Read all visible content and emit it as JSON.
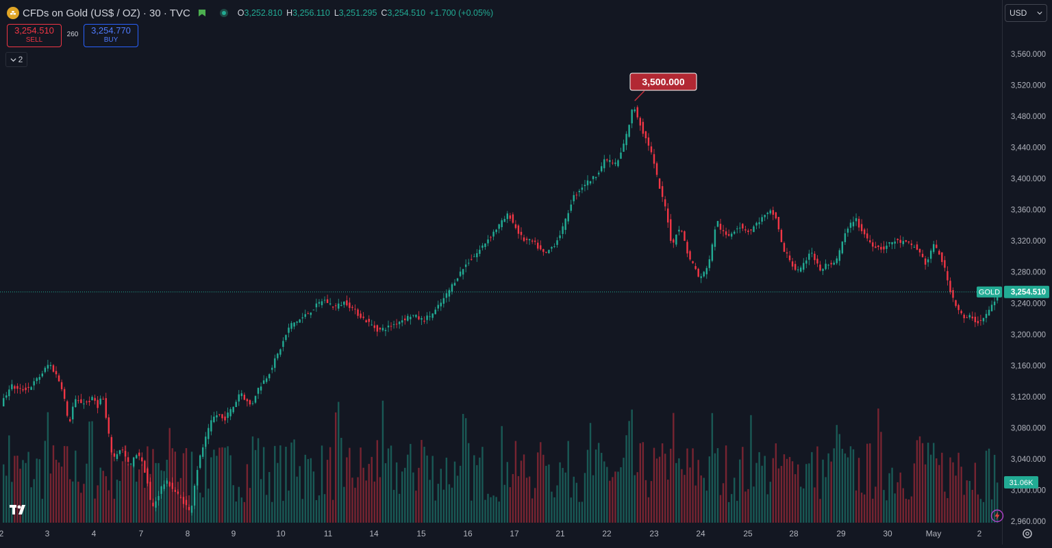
{
  "header": {
    "symbol_title": "CFDs on Gold (US$ / OZ) · 30 · TVC",
    "ohlc": [
      {
        "key": "O",
        "value": "3,252.810"
      },
      {
        "key": "H",
        "value": "3,256.110"
      },
      {
        "key": "L",
        "value": "3,251.295"
      },
      {
        "key": "C",
        "value": "3,254.510"
      },
      {
        "key": "",
        "value": "+1.700 (+0.05%)"
      }
    ]
  },
  "trade": {
    "sell_price": "3,254.510",
    "sell_label": "SELL",
    "spread": "260",
    "buy_price": "3,254.770",
    "buy_label": "BUY"
  },
  "indicators_collapse_count": "2",
  "currency_select": "USD",
  "colors": {
    "up": "#22ab94",
    "down": "#f23645",
    "background": "#131722",
    "label_bg": "#b22833"
  },
  "icons": [
    "gold-symbol-icon",
    "flag-icon",
    "market-open-dot-icon",
    "chevron-down-icon",
    "tradingview-logo",
    "settings-gear-icon",
    "lightning-icon"
  ],
  "chart_data": {
    "type": "candlestick",
    "timeframe": "30",
    "price_axis": {
      "ticks": [
        "3,560.000",
        "3,520.000",
        "3,480.000",
        "3,440.000",
        "3,400.000",
        "3,360.000",
        "3,320.000",
        "3,280.000",
        "3,240.000",
        "3,200.000",
        "3,160.000",
        "3,120.000",
        "3,080.000",
        "3,040.000",
        "3,000.000",
        "2,960.000"
      ],
      "range": [
        2960,
        3580
      ]
    },
    "time_axis": [
      "2",
      "3",
      "4",
      "7",
      "8",
      "9",
      "10",
      "11",
      "14",
      "15",
      "16",
      "17",
      "21",
      "22",
      "23",
      "24",
      "25",
      "28",
      "29",
      "30",
      "May",
      "2"
    ],
    "price_path": [
      [
        0,
        3112
      ],
      [
        3,
        3135
      ],
      [
        6,
        3128
      ],
      [
        10,
        3132
      ],
      [
        14,
        3148
      ],
      [
        17,
        3163
      ],
      [
        20,
        3145
      ],
      [
        22,
        3128
      ],
      [
        24,
        3082
      ],
      [
        26,
        3115
      ],
      [
        30,
        3112
      ],
      [
        33,
        3118
      ],
      [
        35,
        3105
      ],
      [
        36,
        3128
      ],
      [
        38,
        3080
      ],
      [
        40,
        3040
      ],
      [
        43,
        3055
      ],
      [
        46,
        3030
      ],
      [
        49,
        3050
      ],
      [
        52,
        3020
      ],
      [
        54,
        2975
      ],
      [
        56,
        2990
      ],
      [
        58,
        3008
      ],
      [
        60,
        3010
      ],
      [
        62,
        3000
      ],
      [
        66,
        2983
      ],
      [
        68,
        2970
      ],
      [
        70,
        3020
      ],
      [
        72,
        3050
      ],
      [
        74,
        3072
      ],
      [
        76,
        3092
      ],
      [
        78,
        3098
      ],
      [
        80,
        3090
      ],
      [
        84,
        3110
      ],
      [
        86,
        3128
      ],
      [
        88,
        3115
      ],
      [
        90,
        3108
      ],
      [
        92,
        3128
      ],
      [
        96,
        3148
      ],
      [
        100,
        3178
      ],
      [
        104,
        3212
      ],
      [
        108,
        3220
      ],
      [
        112,
        3232
      ],
      [
        116,
        3245
      ],
      [
        120,
        3235
      ],
      [
        124,
        3242
      ],
      [
        128,
        3228
      ],
      [
        132,
        3216
      ],
      [
        136,
        3205
      ],
      [
        140,
        3210
      ],
      [
        144,
        3218
      ],
      [
        148,
        3225
      ],
      [
        152,
        3218
      ],
      [
        156,
        3228
      ],
      [
        160,
        3248
      ],
      [
        164,
        3272
      ],
      [
        168,
        3292
      ],
      [
        172,
        3306
      ],
      [
        176,
        3325
      ],
      [
        180,
        3342
      ],
      [
        183,
        3355
      ],
      [
        185,
        3340
      ],
      [
        188,
        3322
      ],
      [
        192,
        3318
      ],
      [
        196,
        3302
      ],
      [
        200,
        3318
      ],
      [
        203,
        3340
      ],
      [
        206,
        3375
      ],
      [
        210,
        3392
      ],
      [
        214,
        3402
      ],
      [
        218,
        3425
      ],
      [
        222,
        3418
      ],
      [
        224,
        3438
      ],
      [
        226,
        3462
      ],
      [
        228,
        3495
      ],
      [
        230,
        3475
      ],
      [
        232,
        3455
      ],
      [
        234,
        3440
      ],
      [
        236,
        3410
      ],
      [
        238,
        3380
      ],
      [
        240,
        3358
      ],
      [
        242,
        3310
      ],
      [
        244,
        3338
      ],
      [
        246,
        3328
      ],
      [
        248,
        3298
      ],
      [
        250,
        3288
      ],
      [
        252,
        3270
      ],
      [
        254,
        3282
      ],
      [
        256,
        3302
      ],
      [
        258,
        3348
      ],
      [
        260,
        3332
      ],
      [
        262,
        3325
      ],
      [
        266,
        3340
      ],
      [
        270,
        3332
      ],
      [
        274,
        3348
      ],
      [
        278,
        3358
      ],
      [
        280,
        3345
      ],
      [
        282,
        3308
      ],
      [
        284,
        3300
      ],
      [
        286,
        3285
      ],
      [
        288,
        3280
      ],
      [
        290,
        3292
      ],
      [
        292,
        3310
      ],
      [
        294,
        3292
      ],
      [
        296,
        3280
      ],
      [
        298,
        3292
      ],
      [
        300,
        3286
      ],
      [
        302,
        3300
      ],
      [
        304,
        3325
      ],
      [
        306,
        3338
      ],
      [
        308,
        3350
      ],
      [
        310,
        3336
      ],
      [
        312,
        3326
      ],
      [
        314,
        3316
      ],
      [
        318,
        3310
      ],
      [
        322,
        3320
      ],
      [
        326,
        3318
      ],
      [
        330,
        3312
      ],
      [
        332,
        3302
      ],
      [
        334,
        3288
      ],
      [
        336,
        3315
      ],
      [
        338,
        3308
      ],
      [
        340,
        3290
      ],
      [
        342,
        3262
      ],
      [
        344,
        3242
      ],
      [
        346,
        3228
      ],
      [
        348,
        3218
      ],
      [
        350,
        3225
      ],
      [
        352,
        3215
      ],
      [
        354,
        3218
      ],
      [
        356,
        3228
      ],
      [
        358,
        3240
      ],
      [
        360,
        3254.51
      ]
    ],
    "peak_label": "3,500.000",
    "last_price": "3,254.510",
    "last_price_tag": "GOLD",
    "volume_label": "31.06K",
    "series_count": 360
  }
}
